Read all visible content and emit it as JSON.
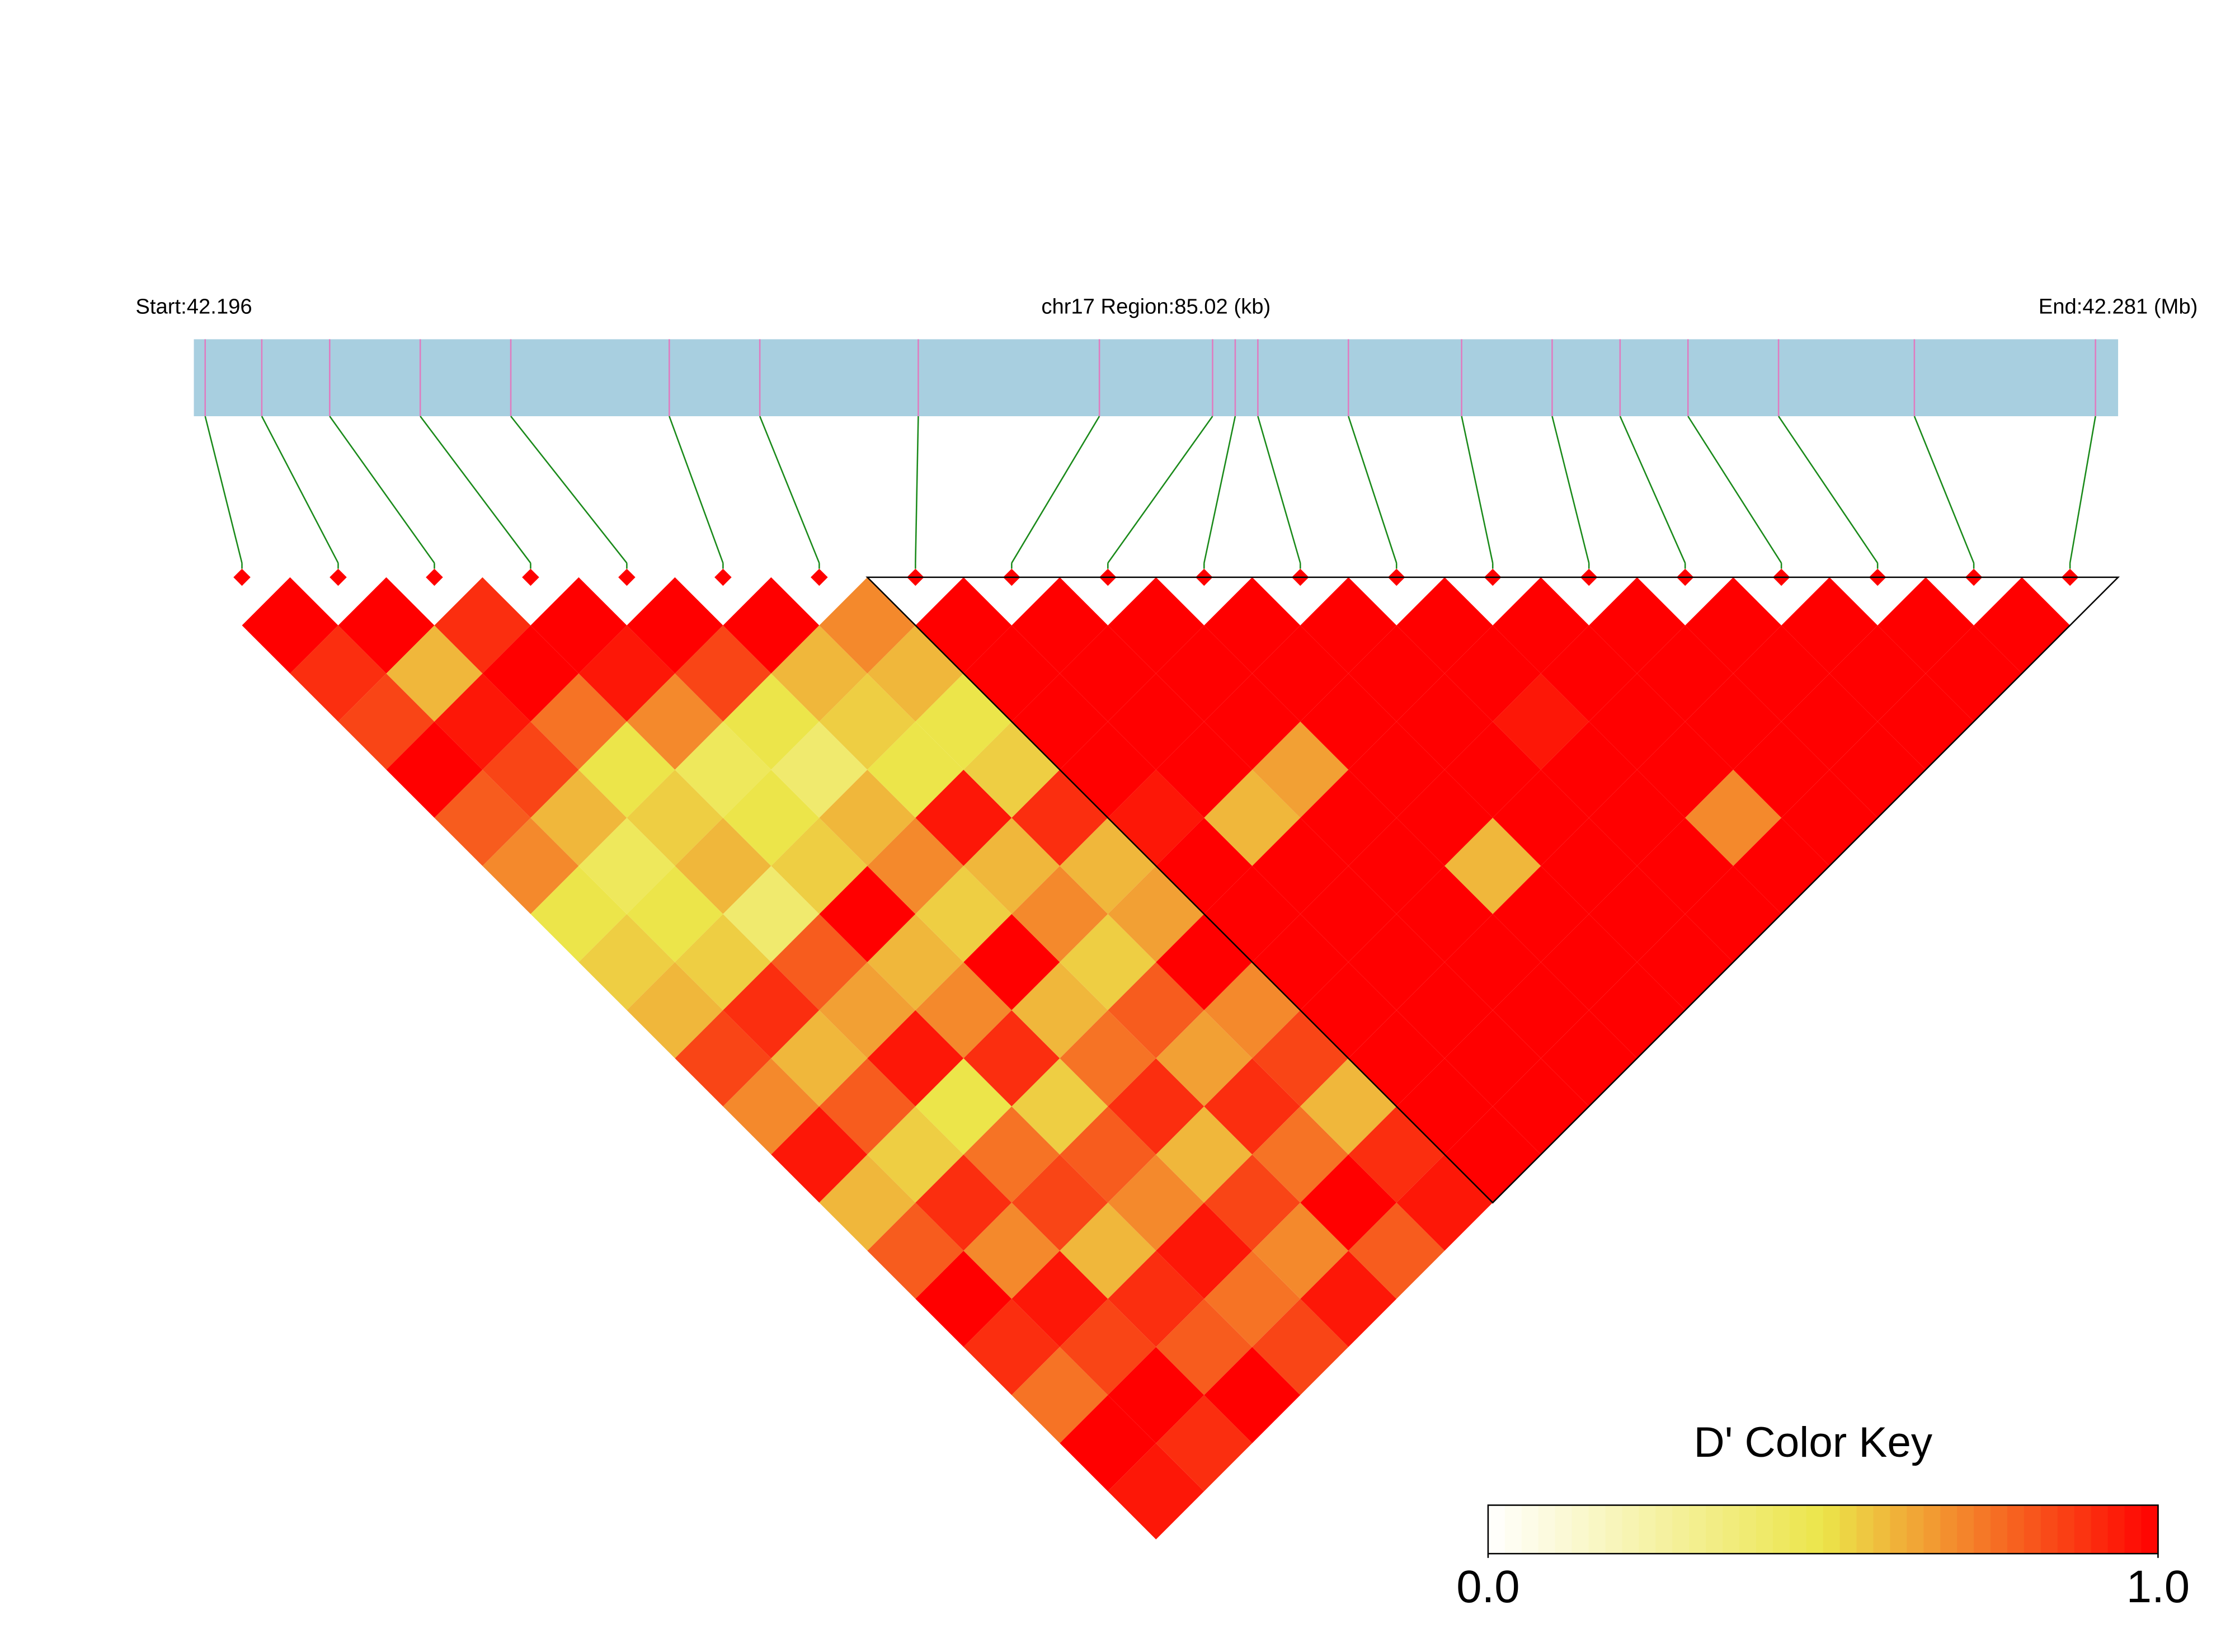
{
  "chart_data": {
    "type": "ld-heatmap",
    "title": "chr17 Region:85.02 (kb)",
    "start_label": "Start:42.196",
    "end_label": "End:42.281 (Mb)",
    "xlim": [
      42.196,
      42.281
    ],
    "positions": [
      42.1965,
      42.199,
      42.202,
      42.206,
      42.21,
      42.217,
      42.221,
      42.228,
      42.236,
      42.241,
      42.242,
      42.243,
      42.247,
      42.252,
      42.256,
      42.259,
      42.262,
      42.266,
      42.272,
      42.28
    ],
    "dprime": [
      [
        1,
        0.9,
        0.85,
        1,
        0.8,
        0.7,
        0.5,
        0.55,
        0.6,
        0.85,
        0.7,
        0.95,
        0.6,
        0.8,
        1,
        0.9,
        0.75,
        1,
        0.95
      ],
      [
        1,
        0.6,
        0.95,
        0.85,
        0.6,
        0.45,
        0.5,
        0.55,
        0.9,
        0.6,
        0.8,
        0.55,
        0.9,
        0.7,
        0.95,
        0.85,
        1,
        0.9
      ],
      [
        0.9,
        1,
        0.75,
        0.5,
        0.55,
        0.6,
        0.4,
        0.8,
        0.65,
        0.95,
        0.5,
        0.75,
        0.85,
        0.6,
        0.9,
        0.8,
        1
      ],
      [
        1,
        0.95,
        0.7,
        0.45,
        0.5,
        0.55,
        1,
        0.6,
        0.7,
        0.9,
        0.55,
        0.8,
        0.7,
        0.95,
        0.75,
        0.85
      ],
      [
        1,
        0.85,
        0.5,
        0.4,
        0.6,
        0.7,
        0.55,
        1,
        0.6,
        0.75,
        0.9,
        0.6,
        0.85,
        0.7,
        0.95
      ],
      [
        1,
        0.6,
        0.55,
        0.5,
        0.95,
        0.6,
        0.7,
        0.55,
        0.8,
        0.65,
        0.9,
        0.75,
        1,
        0.8
      ],
      [
        0.7,
        0.6,
        0.5,
        0.55,
        0.9,
        0.6,
        0.65,
        1,
        0.7,
        0.85,
        0.6,
        0.9,
        0.95
      ],
      [
        1,
        1,
        1,
        1,
        0.95,
        1,
        1,
        1,
        1,
        1,
        1,
        1
      ],
      [
        1,
        1,
        1,
        1,
        0.6,
        1,
        1,
        1,
        1,
        1,
        1
      ],
      [
        1,
        1,
        1,
        0.65,
        1,
        1,
        1,
        1,
        1,
        1
      ],
      [
        1,
        1,
        1,
        1,
        1,
        0.6,
        1,
        1,
        1
      ],
      [
        1,
        1,
        1,
        1,
        1,
        1,
        1,
        1
      ],
      [
        1,
        1,
        0.95,
        1,
        1,
        1,
        1
      ],
      [
        1,
        1,
        1,
        1,
        0.7,
        1
      ],
      [
        1,
        1,
        1,
        1,
        1
      ],
      [
        1,
        1,
        1,
        1
      ],
      [
        1,
        1,
        1
      ],
      [
        1,
        1
      ],
      [
        1
      ]
    ],
    "blocks": [
      [
        7,
        19
      ]
    ],
    "color_stops": [
      "#ffffff",
      "#ece54a",
      "#ff0000"
    ],
    "color_title": "D' Color Key",
    "color_lim": [
      0,
      1
    ],
    "color_ticks": [
      {
        "value": 0,
        "label": "0.0"
      },
      {
        "value": 1,
        "label": "1.0"
      }
    ]
  }
}
